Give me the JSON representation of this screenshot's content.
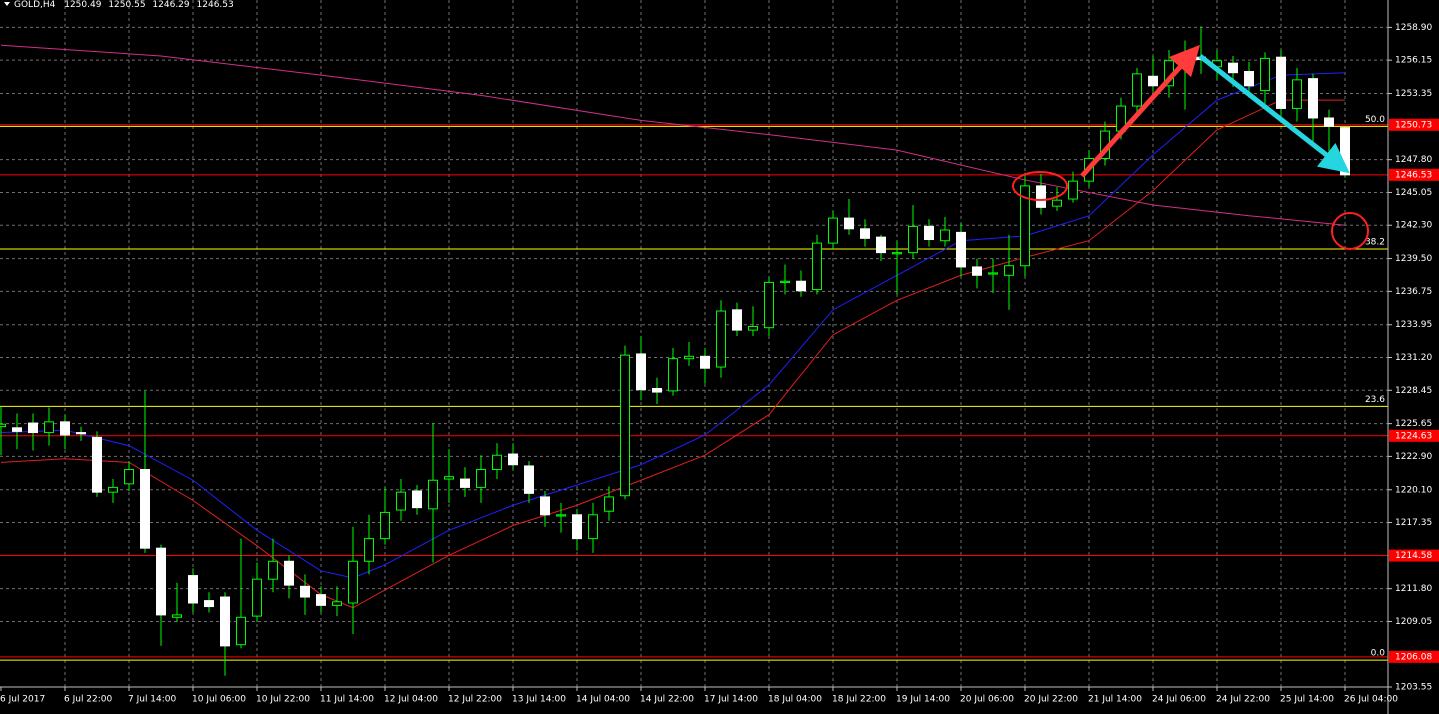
{
  "chart_data": {
    "type": "candlestick",
    "title": "GOLD,H4",
    "bull_color": "#00ff00",
    "bear_color": "#ffffff",
    "wick_color": "#00ff00",
    "grid": true,
    "categories": [
      "6 Jul 2017",
      null,
      null,
      null,
      "6 Jul 22:00",
      null,
      null,
      null,
      "7 Jul 14:00",
      null,
      null,
      null,
      "10 Jul 06:00",
      null,
      null,
      null,
      "10 Jul 22:00",
      null,
      null,
      null,
      "11 Jul 14:00",
      null,
      null,
      null,
      "12 Jul 04:00",
      null,
      null,
      null,
      "12 Jul 22:00",
      null,
      null,
      null,
      "13 Jul 14:00",
      null,
      null,
      null,
      "14 Jul 04:00",
      null,
      null,
      null,
      "14 Jul 22:00",
      null,
      null,
      null,
      "17 Jul 14:00",
      null,
      null,
      null,
      "18 Jul 04:00",
      null,
      null,
      null,
      "18 Jul 22:00",
      null,
      null,
      null,
      "19 Jul 14:00",
      null,
      null,
      null,
      "20 Jul 06:00",
      null,
      null,
      null,
      "20 Jul 22:00",
      null,
      null,
      null,
      "21 Jul 14:00",
      null,
      null,
      null,
      "24 Jul 06:00",
      null,
      null,
      null,
      "24 Jul 22:00",
      null,
      null,
      null,
      "25 Jul 14:00",
      null,
      null,
      null,
      "26 Jul 04:00"
    ],
    "open": [
      1225.4,
      1225.3,
      1225.7,
      1224.9,
      1225.8,
      1224.9,
      1224.5,
      1219.9,
      1220.6,
      1221.8,
      1215.2,
      1209.4,
      1212.9,
      1210.8,
      1211.1,
      1207.1,
      1209.5,
      1212.6,
      1214.1,
      1212.0,
      1211.3,
      1210.4,
      1210.6,
      1214.1,
      1216.0,
      1218.4,
      1220.0,
      1218.5,
      1221.0,
      1221.0,
      1220.3,
      1221.8,
      1223.1,
      1222.1,
      1219.5,
      1217.9,
      1218.0,
      1216.0,
      1218.3,
      1219.6,
      1231.5,
      1228.6,
      1228.4,
      1231.1,
      1231.3,
      1230.4,
      1235.2,
      1233.5,
      1233.7,
      1237.5,
      1237.6,
      1236.9,
      1240.8,
      1242.9,
      1242.0,
      1241.3,
      1239.9,
      1240.0,
      1242.2,
      1241.0,
      1241.7,
      1238.8,
      1238.2,
      1238.1,
      1238.9,
      1245.6,
      1243.9,
      1244.5,
      1246.0,
      1247.9,
      1250.2,
      1252.3,
      1254.8,
      1254.0,
      1255.9,
      1256.4,
      1255.6,
      1255.9,
      1255.2,
      1253.6,
      1256.4,
      1252.1,
      1254.6,
      1251.3,
      1250.49
    ],
    "high": [
      1227.1,
      1226.5,
      1226.5,
      1227.0,
      1226.4,
      1225.4,
      1225.0,
      1221.0,
      1222.5,
      1228.4,
      1215.5,
      1212.3,
      1213.5,
      1211.5,
      1211.5,
      1216.0,
      1214.0,
      1216.0,
      1214.6,
      1213.0,
      1212.0,
      1212.0,
      1217.0,
      1218.0,
      1220.3,
      1221.0,
      1220.5,
      1225.7,
      1223.5,
      1222.0,
      1223.0,
      1224.0,
      1224.0,
      1222.5,
      1220.0,
      1219.0,
      1218.5,
      1219.0,
      1220.4,
      1232.2,
      1233.0,
      1229.5,
      1232.0,
      1232.5,
      1232.0,
      1236.0,
      1235.8,
      1235.5,
      1238.0,
      1239.0,
      1238.5,
      1241.5,
      1243.5,
      1244.5,
      1242.8,
      1241.5,
      1241.0,
      1244.0,
      1242.8,
      1243.0,
      1242.5,
      1239.5,
      1239.5,
      1241.5,
      1246.7,
      1246.6,
      1245.5,
      1246.8,
      1248.6,
      1251.0,
      1253.0,
      1255.5,
      1256.5,
      1257.0,
      1257.8,
      1259.0,
      1257.0,
      1256.5,
      1256.0,
      1256.8,
      1257.0,
      1255.5,
      1255.0,
      1252.0,
      1250.55
    ],
    "low": [
      1223.0,
      1223.5,
      1223.4,
      1223.8,
      1223.5,
      1224.2,
      1219.5,
      1219.0,
      1220.0,
      1214.8,
      1207.0,
      1209.0,
      1209.8,
      1209.8,
      1204.5,
      1206.8,
      1209.0,
      1211.5,
      1211.0,
      1209.6,
      1209.8,
      1209.5,
      1208.0,
      1213.0,
      1215.5,
      1217.5,
      1218.0,
      1214.0,
      1219.0,
      1219.5,
      1219.0,
      1221.0,
      1221.8,
      1219.0,
      1217.0,
      1216.5,
      1215.0,
      1214.8,
      1217.5,
      1219.3,
      1227.6,
      1227.3,
      1228.0,
      1230.5,
      1229.0,
      1229.5,
      1233.0,
      1233.0,
      1233.0,
      1236.5,
      1236.3,
      1236.5,
      1240.3,
      1241.5,
      1240.5,
      1239.3,
      1236.5,
      1239.5,
      1240.5,
      1240.5,
      1238.0,
      1237.0,
      1236.6,
      1235.2,
      1238.0,
      1243.2,
      1243.5,
      1244.2,
      1245.5,
      1247.3,
      1249.5,
      1251.5,
      1253.5,
      1253.0,
      1252.0,
      1255.0,
      1254.5,
      1253.9,
      1253.0,
      1252.5,
      1251.5,
      1251.0,
      1249.2,
      1248.5,
      1246.29
    ],
    "close": [
      1225.6,
      1225.0,
      1224.9,
      1225.8,
      1224.7,
      1224.8,
      1219.9,
      1220.3,
      1221.8,
      1215.2,
      1209.6,
      1209.6,
      1210.6,
      1210.3,
      1207.0,
      1209.4,
      1212.6,
      1214.1,
      1212.1,
      1211.1,
      1210.4,
      1210.7,
      1214.1,
      1216.0,
      1218.2,
      1219.9,
      1218.6,
      1220.9,
      1221.2,
      1220.3,
      1221.8,
      1223.0,
      1222.2,
      1219.8,
      1218.0,
      1218.0,
      1216.0,
      1218.0,
      1219.5,
      1231.4,
      1228.5,
      1228.3,
      1231.1,
      1231.3,
      1230.3,
      1235.1,
      1233.5,
      1233.8,
      1237.5,
      1237.6,
      1236.8,
      1240.8,
      1242.9,
      1242.0,
      1241.2,
      1240.0,
      1240.0,
      1242.2,
      1241.1,
      1241.9,
      1238.8,
      1238.1,
      1238.3,
      1238.9,
      1245.6,
      1243.8,
      1244.4,
      1246.0,
      1247.9,
      1250.2,
      1252.3,
      1255.0,
      1254.0,
      1256.1,
      1256.4,
      1256.2,
      1256.1,
      1255.1,
      1254.0,
      1256.3,
      1252.1,
      1254.5,
      1251.3,
      1250.6,
      1246.53
    ],
    "ylim": [
      1203.55,
      1261.2
    ],
    "yticks": [
      {
        "value": 1258.9,
        "label": "1258.90"
      },
      1256.15,
      1253.35,
      {
        "value": 1247.8,
        "label": "1247.80"
      },
      1245.05,
      {
        "value": 1242.3,
        "label": "1242.30"
      },
      {
        "value": 1239.5,
        "label": "1239.50"
      },
      1236.75,
      1233.95,
      {
        "value": 1231.2,
        "label": "1231.20"
      },
      1228.45,
      1225.65,
      {
        "value": 1222.9,
        "label": "1222.90"
      },
      {
        "value": 1220.1,
        "label": "1220.10"
      },
      1217.35,
      {
        "value": 1211.8,
        "label": "1211.80"
      },
      1209.05,
      1203.55
    ],
    "moving_averages": [
      {
        "color": "#2020ff",
        "x": [
          0,
          4,
          8,
          12,
          16,
          20,
          22,
          24,
          28,
          32,
          36,
          40,
          44,
          48,
          52,
          56,
          60,
          64,
          68,
          72,
          76,
          80,
          84
        ],
        "values": [
          1224.9,
          1225.1,
          1223.8,
          1220.9,
          1216.7,
          1213.3,
          1212.7,
          1213.8,
          1216.7,
          1218.8,
          1220.5,
          1222.2,
          1224.7,
          1228.9,
          1235.2,
          1238.1,
          1241.0,
          1241.4,
          1243.1,
          1248.2,
          1252.8,
          1254.9,
          1255.1
        ]
      },
      {
        "color": "#e02020",
        "x": [
          0,
          4,
          8,
          12,
          16,
          20,
          22,
          24,
          28,
          32,
          36,
          40,
          44,
          48,
          52,
          56,
          60,
          64,
          68,
          72,
          76,
          80,
          84
        ],
        "values": [
          1222.4,
          1222.7,
          1222.4,
          1219.2,
          1215.4,
          1211.3,
          1210.2,
          1211.7,
          1214.6,
          1217.1,
          1218.8,
          1220.9,
          1223.0,
          1226.4,
          1233.1,
          1236.0,
          1238.1,
          1239.6,
          1241.0,
          1245.2,
          1250.3,
          1252.8,
          1252.8
        ]
      },
      {
        "color": "#d0308a",
        "x": [
          0,
          10,
          20,
          30,
          40,
          48,
          56,
          64,
          72,
          78,
          84
        ],
        "values": [
          1257.4,
          1256.5,
          1254.9,
          1253.2,
          1251.1,
          1249.9,
          1248.6,
          1246.1,
          1244.0,
          1243.1,
          1242.3
        ]
      }
    ],
    "levels": [
      1250.73,
      1246.53,
      1224.63,
      1214.58,
      1206.08
    ],
    "level_color": "#ff0000",
    "fib_color": "#ffff00",
    "fib_levels": [
      {
        "label": "50.0",
        "price": 1250.6
      },
      {
        "label": "38.2",
        "price": 1240.3
      },
      {
        "label": "23.6",
        "price": 1227.1
      },
      {
        "label": "0.0",
        "price": 1205.8
      }
    ]
  }
}
